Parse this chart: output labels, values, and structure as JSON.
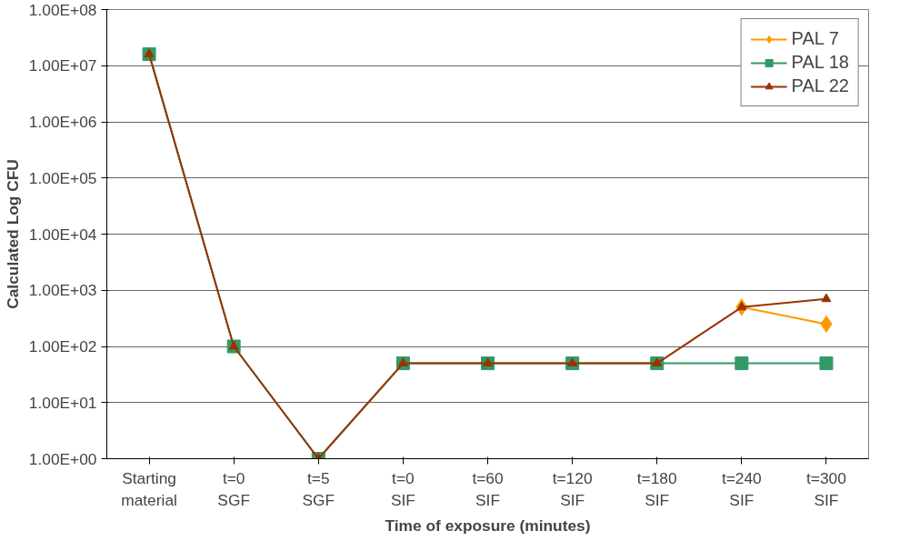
{
  "chart_data": {
    "type": "line",
    "xlabel": "Time of exposure (minutes)",
    "ylabel": "Calculated Log CFU",
    "categories": [
      "Starting\nmaterial",
      "t=0\nSGF",
      "t=5\nSGF",
      "t=0\nSIF",
      "t=60\nSIF",
      "t=120\nSIF",
      "t=180\nSIF",
      "t=240\nSIF",
      "t=300\nSIF"
    ],
    "series": [
      {
        "name": "PAL 7",
        "color": "#ff9900",
        "marker": "diamond",
        "values": [
          null,
          null,
          null,
          null,
          null,
          null,
          null,
          500,
          250
        ]
      },
      {
        "name": "PAL 18",
        "color": "#339966",
        "marker": "square",
        "values": [
          16000000,
          100,
          1,
          50,
          50,
          50,
          50,
          50,
          50
        ]
      },
      {
        "name": "PAL 22",
        "color": "#993300",
        "marker": "triangle",
        "values": [
          16000000,
          100,
          1,
          50,
          50,
          50,
          50,
          500,
          700
        ]
      }
    ],
    "log": "y",
    "ylim": [
      1,
      100000000
    ],
    "yticks": [
      {
        "value": 1,
        "label": "1.00E+00"
      },
      {
        "value": 10,
        "label": "1.00E+01"
      },
      {
        "value": 100,
        "label": "1.00E+02"
      },
      {
        "value": 1000,
        "label": "1.00E+03"
      },
      {
        "value": 10000,
        "label": "1.00E+04"
      },
      {
        "value": 100000,
        "label": "1.00E+05"
      },
      {
        "value": 1000000,
        "label": "1.00E+06"
      },
      {
        "value": 10000000,
        "label": "1.00E+07"
      },
      {
        "value": 100000000,
        "label": "1.00E+08"
      }
    ],
    "grid": "y",
    "legend": "top right"
  }
}
